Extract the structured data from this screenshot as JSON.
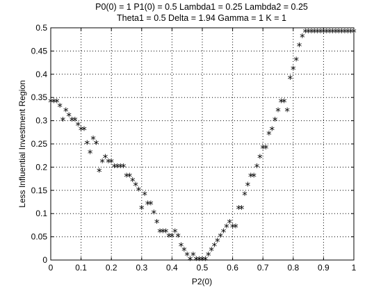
{
  "chart_data": {
    "type": "scatter",
    "title_lines": [
      "P0(0) = 1 P1(0) = 0.5 Lambda1 = 0.25 Lambda2 = 0.25",
      "Theta1 = 0.5 Delta = 1.94 Gamma = 1 K = 1"
    ],
    "xlabel": "P2(0)",
    "ylabel": "Less Influential Investment Region",
    "xlim": [
      0,
      1
    ],
    "ylim": [
      0,
      0.5
    ],
    "grid": true,
    "marker": "*",
    "xticks": [
      0,
      0.1,
      0.2,
      0.3,
      0.4,
      0.5,
      0.6,
      0.7,
      0.8,
      0.9,
      1
    ],
    "xtick_labels": [
      "0",
      "0.1",
      "0.2",
      "0.3",
      "0.4",
      "0.5",
      "0.6",
      "0.7",
      "0.8",
      "0.9",
      "1"
    ],
    "yticks": [
      0,
      0.05,
      0.1,
      0.15,
      0.2,
      0.25,
      0.3,
      0.35,
      0.4,
      0.45,
      0.5
    ],
    "ytick_labels": [
      "0",
      "0.05",
      "0.1",
      "0.15",
      "0.2",
      "0.25",
      "0.3",
      "0.35",
      "0.4",
      "0.45",
      "0.5"
    ],
    "x": [
      0,
      0.01,
      0.02,
      0.03,
      0.04,
      0.05,
      0.06,
      0.07,
      0.08,
      0.09,
      0.1,
      0.11,
      0.12,
      0.13,
      0.14,
      0.15,
      0.16,
      0.17,
      0.18,
      0.19,
      0.2,
      0.21,
      0.22,
      0.23,
      0.24,
      0.25,
      0.26,
      0.27,
      0.28,
      0.29,
      0.3,
      0.31,
      0.32,
      0.33,
      0.34,
      0.35,
      0.36,
      0.37,
      0.38,
      0.39,
      0.4,
      0.41,
      0.42,
      0.43,
      0.44,
      0.45,
      0.46,
      0.47,
      0.48,
      0.49,
      0.5,
      0.51,
      0.52,
      0.53,
      0.54,
      0.55,
      0.56,
      0.57,
      0.58,
      0.59,
      0.6,
      0.61,
      0.62,
      0.63,
      0.64,
      0.65,
      0.66,
      0.67,
      0.68,
      0.69,
      0.7,
      0.71,
      0.72,
      0.73,
      0.74,
      0.75,
      0.76,
      0.77,
      0.78,
      0.79,
      0.8,
      0.81,
      0.82,
      0.83,
      0.84,
      0.85,
      0.86,
      0.87,
      0.88,
      0.89,
      0.9,
      0.91,
      0.92,
      0.93,
      0.94,
      0.95,
      0.96,
      0.97,
      0.98,
      0.99,
      1.0
    ],
    "y": [
      0.34,
      0.34,
      0.34,
      0.33,
      0.3,
      0.32,
      0.31,
      0.3,
      0.3,
      0.29,
      0.28,
      0.28,
      0.25,
      0.23,
      0.26,
      0.25,
      0.19,
      0.21,
      0.22,
      0.21,
      0.21,
      0.2,
      0.2,
      0.2,
      0.2,
      0.18,
      0.18,
      0.17,
      0.16,
      0.15,
      0.11,
      0.14,
      0.12,
      0.12,
      0.1,
      0.08,
      0.06,
      0.06,
      0.06,
      0.05,
      0.05,
      0.06,
      0.05,
      0.03,
      0.02,
      0.01,
      0.0,
      0.01,
      0.0,
      0.0,
      0.0,
      0.0,
      0.01,
      0.02,
      0.03,
      0.04,
      0.05,
      0.06,
      0.07,
      0.08,
      0.07,
      0.07,
      0.11,
      0.11,
      0.14,
      0.16,
      0.18,
      0.18,
      0.2,
      0.22,
      0.24,
      0.24,
      0.27,
      0.28,
      0.3,
      0.32,
      0.34,
      0.34,
      0.32,
      0.39,
      0.41,
      0.43,
      0.46,
      0.48,
      0.49,
      0.49,
      0.49,
      0.49,
      0.49,
      0.49,
      0.49,
      0.49,
      0.49,
      0.49,
      0.49,
      0.49,
      0.49,
      0.49,
      0.49,
      0.49,
      0.49
    ]
  }
}
